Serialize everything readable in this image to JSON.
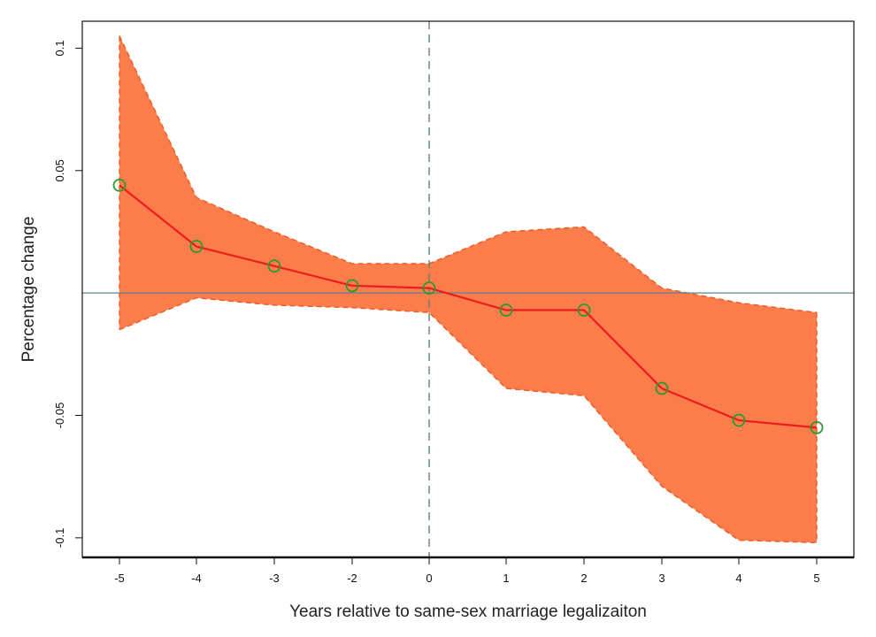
{
  "chart_data": {
    "type": "line",
    "title": "",
    "xlabel": "Years relative to same-sex marriage legalizaiton",
    "ylabel": "Percentage change",
    "x": [
      -5,
      -4,
      -3,
      -2,
      0,
      1,
      2,
      3,
      4,
      5
    ],
    "x_ticks": [
      "-5",
      "-4",
      "-3",
      "-2",
      "0",
      "1",
      "2",
      "3",
      "4",
      "5"
    ],
    "y_ticks": [
      {
        "value": 0.1,
        "label": "0.1"
      },
      {
        "value": 0.05,
        "label": "0.05"
      },
      {
        "value": -0.05,
        "label": "-0.05"
      },
      {
        "value": -0.1,
        "label": "-0.1"
      }
    ],
    "ylim": [
      -0.108,
      0.111
    ],
    "series": [
      {
        "values": [
          0.044,
          0.019,
          0.011,
          0.003,
          0.002,
          -0.007,
          -0.007,
          -0.039,
          -0.052,
          -0.055
        ],
        "lower": [
          -0.015,
          -0.002,
          -0.005,
          -0.006,
          -0.008,
          -0.039,
          -0.042,
          -0.079,
          -0.101,
          -0.102
        ],
        "upper": [
          0.105,
          0.039,
          0.025,
          0.012,
          0.012,
          0.025,
          0.027,
          0.002,
          -0.004,
          -0.008
        ]
      }
    ],
    "reference_lines": {
      "horizontal_y": 0,
      "vertical_x": 0
    },
    "grid": false,
    "legend": "none",
    "colors": {
      "band_fill": "#fb7d4b",
      "band_edge": "#ee5a24",
      "line": "#ee1c1c",
      "marker": "#2e9a2e",
      "zero_line": "#5f7f92",
      "vertical_line": "#5e8272",
      "frame": "#111111"
    }
  }
}
